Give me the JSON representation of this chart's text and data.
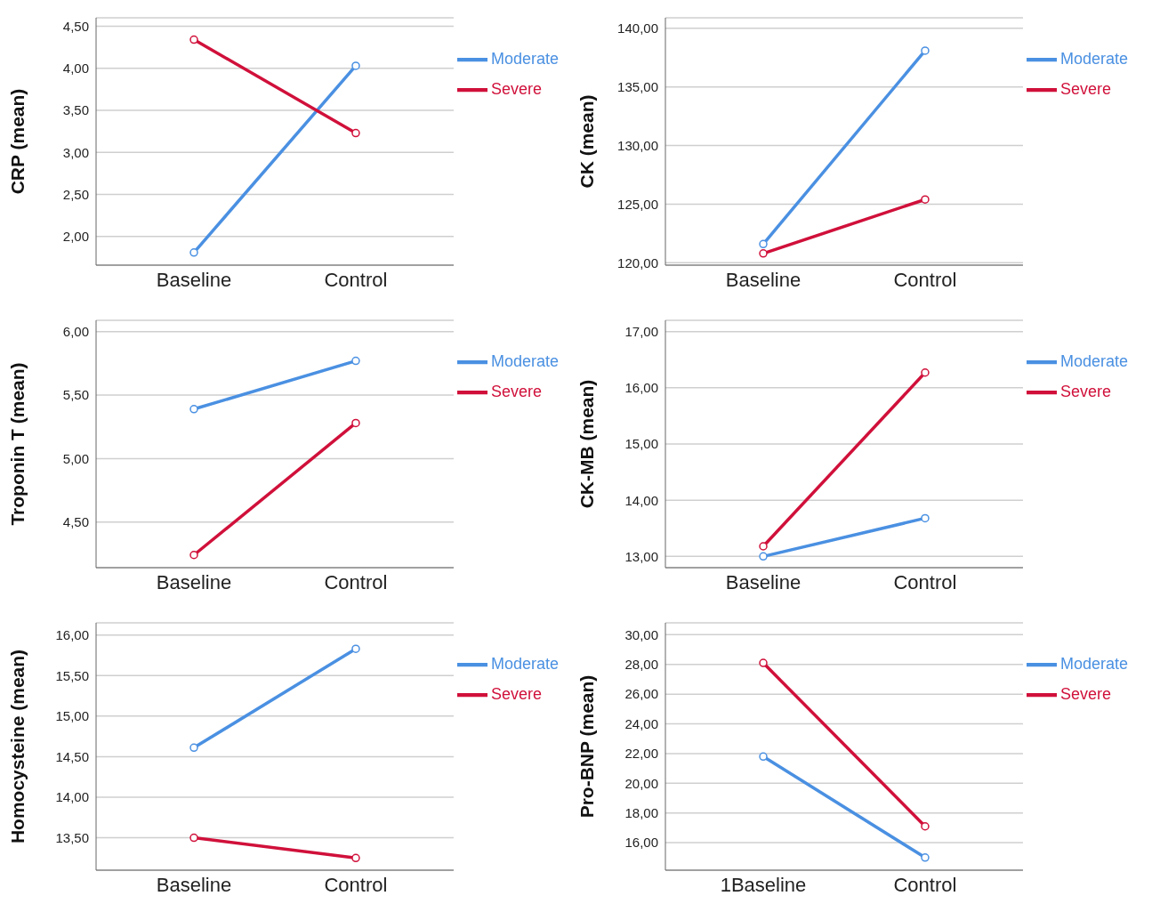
{
  "chart_data": [
    {
      "type": "line",
      "ylabel": "CRP (mean)",
      "categories": [
        "Baseline",
        "Control"
      ],
      "ylim": [
        1.66,
        4.6
      ],
      "yticks": [
        {
          "value": 2,
          "label": "2,00"
        },
        {
          "value": 2.5,
          "label": "2,50"
        },
        {
          "value": 3,
          "label": "3,00"
        },
        {
          "value": 3.5,
          "label": "3,50"
        },
        {
          "value": 4,
          "label": "4,00"
        },
        {
          "value": 4.5,
          "label": "4,50"
        }
      ],
      "grid": "y",
      "legend": "top right",
      "marker": "circle",
      "line_style": "solid",
      "series": [
        {
          "name": "Moderate",
          "color": "#4a90e2",
          "values": [
            1.81,
            4.03
          ]
        },
        {
          "name": "Severe",
          "color": "#d0103a",
          "values": [
            4.34,
            3.23
          ]
        }
      ]
    },
    {
      "type": "line",
      "ylabel": "CK (mean)",
      "categories": [
        "Baseline",
        "Control"
      ],
      "ylim": [
        119.8,
        140.9
      ],
      "yticks": [
        {
          "value": 120,
          "label": "120,00"
        },
        {
          "value": 125,
          "label": "125,00"
        },
        {
          "value": 130,
          "label": "130,00"
        },
        {
          "value": 135,
          "label": "135,00"
        },
        {
          "value": 140,
          "label": "140,00"
        }
      ],
      "grid": "y",
      "legend": "top right",
      "marker": "circle",
      "line_style": "solid",
      "series": [
        {
          "name": "Moderate",
          "color": "#4a90e2",
          "values": [
            121.6,
            138.1
          ]
        },
        {
          "name": "Severe",
          "color": "#d0103a",
          "values": [
            120.8,
            125.4
          ]
        }
      ]
    },
    {
      "type": "line",
      "ylabel": "Troponin T (mean)",
      "categories": [
        "Baseline",
        "Control"
      ],
      "ylim": [
        4.14,
        6.09
      ],
      "yticks": [
        {
          "value": 4.5,
          "label": "4,50"
        },
        {
          "value": 5,
          "label": "5,00"
        },
        {
          "value": 5.5,
          "label": "5,50"
        },
        {
          "value": 6,
          "label": "6,00"
        }
      ],
      "grid": "y",
      "legend": "top right",
      "marker": "circle",
      "line_style": "solid",
      "series": [
        {
          "name": "Moderate",
          "color": "#4a90e2",
          "values": [
            5.39,
            5.77
          ]
        },
        {
          "name": "Severe",
          "color": "#d0103a",
          "values": [
            4.24,
            5.28
          ]
        }
      ]
    },
    {
      "type": "line",
      "ylabel": "CK-MB (mean)",
      "categories": [
        "Baseline",
        "Control"
      ],
      "ylim": [
        12.8,
        17.2
      ],
      "yticks": [
        {
          "value": 13,
          "label": "13,00"
        },
        {
          "value": 14,
          "label": "14,00"
        },
        {
          "value": 15,
          "label": "15,00"
        },
        {
          "value": 16,
          "label": "16,00"
        },
        {
          "value": 17,
          "label": "17,00"
        }
      ],
      "grid": "y",
      "legend": "top right",
      "marker": "circle",
      "line_style": "solid",
      "series": [
        {
          "name": "Moderate",
          "color": "#4a90e2",
          "values": [
            13.0,
            13.68
          ]
        },
        {
          "name": "Severe",
          "color": "#d0103a",
          "values": [
            13.18,
            16.27
          ]
        }
      ]
    },
    {
      "type": "line",
      "ylabel": "Homocysteine (mean)",
      "categories": [
        "Baseline",
        "Control"
      ],
      "ylim": [
        13.1,
        16.15
      ],
      "yticks": [
        {
          "value": 13.5,
          "label": "13,50"
        },
        {
          "value": 14,
          "label": "14,00"
        },
        {
          "value": 14.5,
          "label": "14,50"
        },
        {
          "value": 15,
          "label": "15,00"
        },
        {
          "value": 15.5,
          "label": "15,50"
        },
        {
          "value": 16,
          "label": "16,00"
        }
      ],
      "grid": "y",
      "legend": "top right",
      "marker": "circle",
      "line_style": "solid",
      "series": [
        {
          "name": "Moderate",
          "color": "#4a90e2",
          "values": [
            14.61,
            15.83
          ]
        },
        {
          "name": "Severe",
          "color": "#d0103a",
          "values": [
            13.5,
            13.25
          ]
        }
      ]
    },
    {
      "type": "line",
      "ylabel": "Pro-BNP (mean)",
      "categories": [
        "1Baseline",
        "Control"
      ],
      "ylim": [
        14.15,
        30.8
      ],
      "yticks": [
        {
          "value": 16,
          "label": "16,00"
        },
        {
          "value": 18,
          "label": "18,00"
        },
        {
          "value": 20,
          "label": "20,00"
        },
        {
          "value": 22,
          "label": "22,00"
        },
        {
          "value": 24,
          "label": "24,00"
        },
        {
          "value": 26,
          "label": "26,00"
        },
        {
          "value": 28,
          "label": "28,00"
        },
        {
          "value": 30,
          "label": "30,00"
        }
      ],
      "grid": "y",
      "legend": "top right",
      "marker": "circle",
      "line_style": "solid",
      "series": [
        {
          "name": "Moderate",
          "color": "#4a90e2",
          "values": [
            21.8,
            15.0
          ]
        },
        {
          "name": "Severe",
          "color": "#d0103a",
          "values": [
            28.1,
            17.1
          ]
        }
      ]
    }
  ]
}
